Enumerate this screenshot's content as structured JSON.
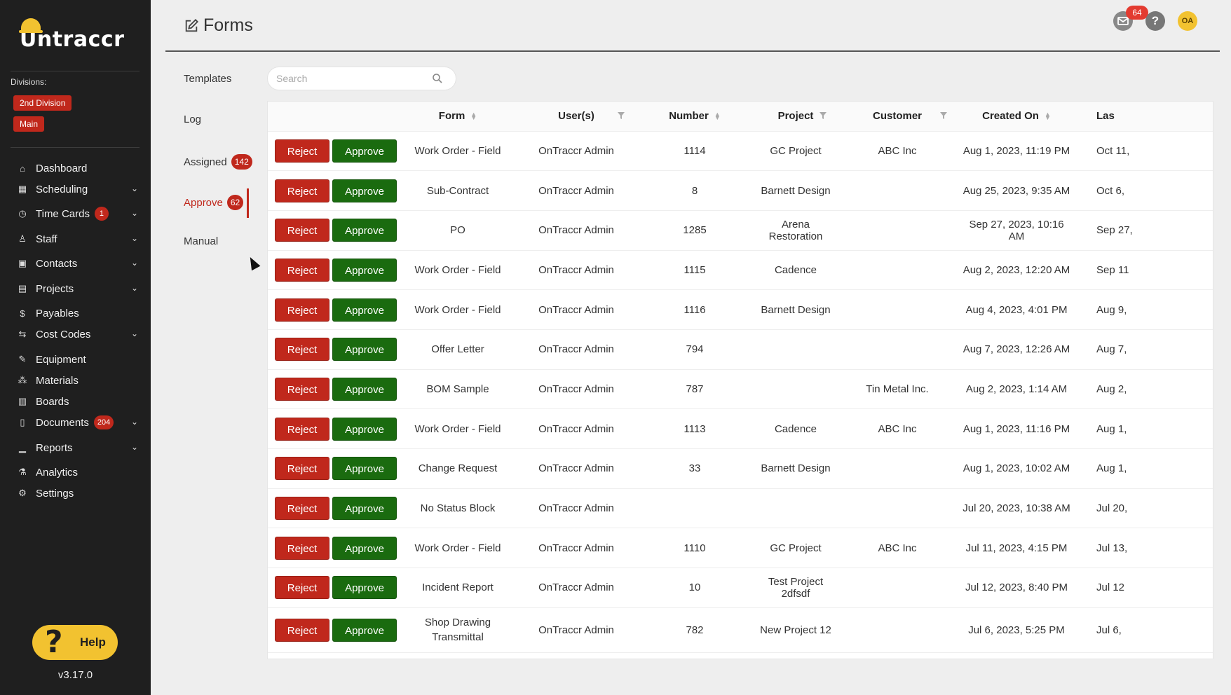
{
  "app": {
    "logo_text": "Untraccr",
    "divisions_label": "Divisions:",
    "divisions": [
      "2nd Division",
      "Main"
    ],
    "version": "v3.17.0",
    "help_label": "Help"
  },
  "sidebar": {
    "items": [
      {
        "label": "Dashboard",
        "icon": "home-icon",
        "badge": null,
        "expandable": false
      },
      {
        "label": "Scheduling",
        "icon": "calendar-icon",
        "badge": null,
        "expandable": true
      },
      {
        "label": "Time Cards",
        "icon": "clock-icon",
        "badge": "1",
        "expandable": true
      },
      {
        "label": "Staff",
        "icon": "person-icon",
        "badge": null,
        "expandable": true
      },
      {
        "label": "Contacts",
        "icon": "contacts-icon",
        "badge": null,
        "expandable": true
      },
      {
        "label": "Projects",
        "icon": "projects-icon",
        "badge": null,
        "expandable": true
      },
      {
        "label": "Payables",
        "icon": "dollar-icon",
        "badge": null,
        "expandable": false
      },
      {
        "label": "Cost Codes",
        "icon": "swap-icon",
        "badge": null,
        "expandable": true
      },
      {
        "label": "Equipment",
        "icon": "wrench-icon",
        "badge": null,
        "expandable": false
      },
      {
        "label": "Materials",
        "icon": "materials-icon",
        "badge": null,
        "expandable": false
      },
      {
        "label": "Boards",
        "icon": "board-icon",
        "badge": null,
        "expandable": false
      },
      {
        "label": "Documents",
        "icon": "document-icon",
        "badge": "204",
        "expandable": true
      },
      {
        "label": "Reports",
        "icon": "chart-icon",
        "badge": null,
        "expandable": true
      },
      {
        "label": "Analytics",
        "icon": "flask-icon",
        "badge": null,
        "expandable": false
      },
      {
        "label": "Settings",
        "icon": "gear-icon",
        "badge": null,
        "expandable": false
      }
    ]
  },
  "header": {
    "title": "Forms",
    "mail_badge": "64",
    "help_symbol": "?",
    "avatar_initials": "OA"
  },
  "tabs": [
    {
      "label": "Templates",
      "badge": null,
      "active": false
    },
    {
      "label": "Log",
      "badge": null,
      "active": false
    },
    {
      "label": "Assigned",
      "badge": "142",
      "active": false
    },
    {
      "label": "Approve",
      "badge": "62",
      "active": true
    },
    {
      "label": "Manual",
      "badge": null,
      "active": false
    }
  ],
  "search": {
    "placeholder": "Search",
    "value": ""
  },
  "table": {
    "reject_label": "Reject",
    "approve_label": "Approve",
    "columns": [
      {
        "label": "Form",
        "sort": true,
        "filter": false
      },
      {
        "label": "User(s)",
        "sort": false,
        "filter": true
      },
      {
        "label": "Number",
        "sort": true,
        "filter": false
      },
      {
        "label": "Project",
        "sort": false,
        "filter": true
      },
      {
        "label": "Customer",
        "sort": false,
        "filter": true
      },
      {
        "label": "Created On",
        "sort": true,
        "filter": false
      },
      {
        "label": "Las",
        "sort": false,
        "filter": false
      }
    ],
    "rows": [
      {
        "form": "Work Order - Field",
        "users": "OnTraccr Admin",
        "number": "1114",
        "project": "GC Project",
        "customer": "ABC Inc",
        "created": "Aug 1, 2023, 11:19 PM",
        "last": "Oct 11,"
      },
      {
        "form": "Sub-Contract",
        "users": "OnTraccr Admin",
        "number": "8",
        "project": "Barnett Design",
        "customer": "",
        "created": "Aug 25, 2023, 9:35 AM",
        "last": "Oct 6,"
      },
      {
        "form": "PO",
        "users": "OnTraccr Admin",
        "number": "1285",
        "project": "Arena Restoration",
        "customer": "",
        "created": "Sep 27, 2023, 10:16 AM",
        "last": "Sep 27,"
      },
      {
        "form": "Work Order - Field",
        "users": "OnTraccr Admin",
        "number": "1115",
        "project": "Cadence",
        "customer": "",
        "created": "Aug 2, 2023, 12:20 AM",
        "last": "Sep 11"
      },
      {
        "form": "Work Order - Field",
        "users": "OnTraccr Admin",
        "number": "1116",
        "project": "Barnett Design",
        "customer": "",
        "created": "Aug 4, 2023, 4:01 PM",
        "last": "Aug 9,"
      },
      {
        "form": "Offer Letter",
        "users": "OnTraccr Admin",
        "number": "794",
        "project": "",
        "customer": "",
        "created": "Aug 7, 2023, 12:26 AM",
        "last": "Aug 7,"
      },
      {
        "form": "BOM Sample",
        "users": "OnTraccr Admin",
        "number": "787",
        "project": "",
        "customer": "Tin Metal Inc.",
        "created": "Aug 2, 2023, 1:14 AM",
        "last": "Aug 2,"
      },
      {
        "form": "Work Order - Field",
        "users": "OnTraccr Admin",
        "number": "1113",
        "project": "Cadence",
        "customer": "ABC Inc",
        "created": "Aug 1, 2023, 11:16 PM",
        "last": "Aug 1,"
      },
      {
        "form": "Change Request",
        "users": "OnTraccr Admin",
        "number": "33",
        "project": "Barnett Design",
        "customer": "",
        "created": "Aug 1, 2023, 10:02 AM",
        "last": "Aug 1,"
      },
      {
        "form": "No Status Block",
        "users": "OnTraccr Admin",
        "number": "",
        "project": "",
        "customer": "",
        "created": "Jul 20, 2023, 10:38 AM",
        "last": "Jul 20,"
      },
      {
        "form": "Work Order - Field",
        "users": "OnTraccr Admin",
        "number": "1110",
        "project": "GC Project",
        "customer": "ABC Inc",
        "created": "Jul 11, 2023, 4:15 PM",
        "last": "Jul 13,"
      },
      {
        "form": "Incident Report",
        "users": "OnTraccr Admin",
        "number": "10",
        "project": "Test Project 2dfsdf",
        "customer": "",
        "created": "Jul 12, 2023, 8:40 PM",
        "last": "Jul 12"
      },
      {
        "form": "Shop Drawing Transmittal",
        "users": "OnTraccr Admin",
        "number": "782",
        "project": "New Project 12",
        "customer": "",
        "created": "Jul 6, 2023, 5:25 PM",
        "last": "Jul 6,"
      }
    ]
  },
  "colors": {
    "sidebar_bg": "#1f1f1f",
    "accent_red": "#c0281c",
    "approve_green": "#1a6b0f",
    "help_yellow": "#f2c230"
  }
}
